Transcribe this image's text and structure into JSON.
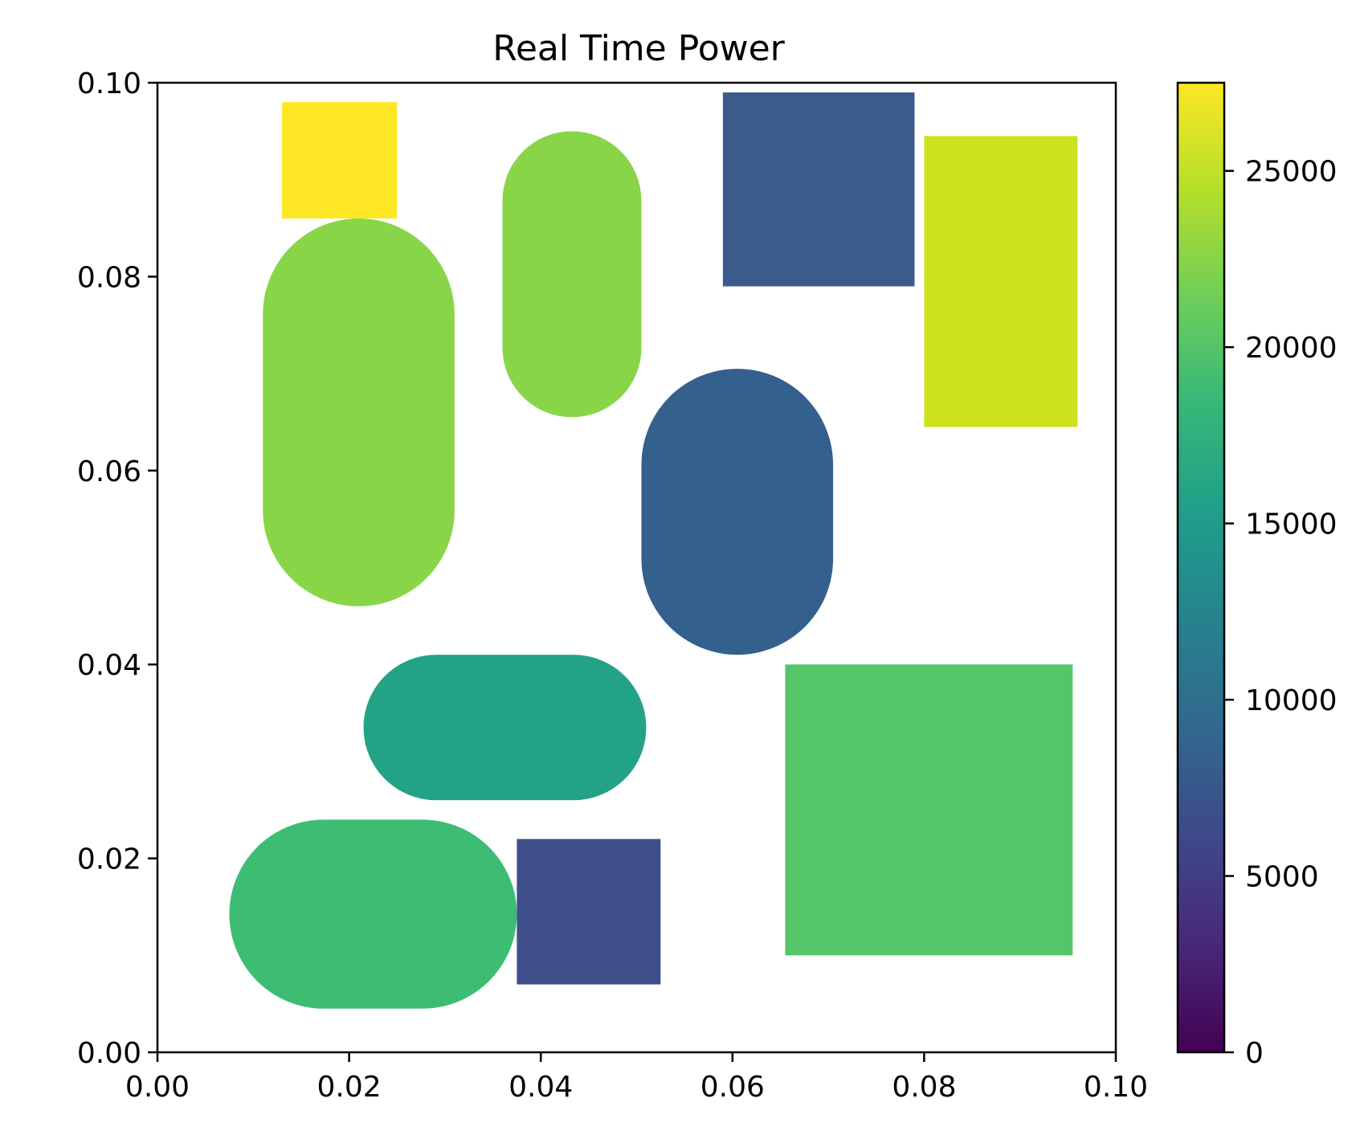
{
  "chart_data": {
    "type": "heatmap",
    "title": "Real Time Power",
    "xlabel": "",
    "ylabel": "",
    "xlim": [
      0.0,
      0.1
    ],
    "ylim": [
      0.0,
      0.1
    ],
    "x_ticks": [
      "0.00",
      "0.02",
      "0.04",
      "0.06",
      "0.08",
      "0.10"
    ],
    "y_ticks": [
      "0.00",
      "0.02",
      "0.04",
      "0.06",
      "0.08",
      "0.10"
    ],
    "grid": false,
    "background": "#ffffff",
    "colorbar": {
      "colormap": "viridis",
      "range": [
        0,
        27500
      ],
      "ticks": [
        "0",
        "5000",
        "10000",
        "15000",
        "20000",
        "25000"
      ],
      "tick_values": [
        0,
        5000,
        10000,
        15000,
        20000,
        25000
      ],
      "stops": [
        "#440154",
        "#482878",
        "#3e4989",
        "#31688e",
        "#26828e",
        "#1f9e89",
        "#35b779",
        "#6ece58",
        "#b5de2b",
        "#fde725"
      ]
    },
    "components": [
      {
        "shape": "rectangle",
        "x": [
          0.013,
          0.025
        ],
        "y": [
          0.086,
          0.098
        ],
        "value": 27400,
        "color": "#fde725"
      },
      {
        "shape": "stadium",
        "orientation": "vertical",
        "x": [
          0.011,
          0.031
        ],
        "y": [
          0.046,
          0.086
        ],
        "value": 22800,
        "color": "#89d548"
      },
      {
        "shape": "stadium",
        "orientation": "vertical",
        "x": [
          0.036,
          0.0505
        ],
        "y": [
          0.0655,
          0.095
        ],
        "value": 22800,
        "color": "#89d548"
      },
      {
        "shape": "rectangle",
        "x": [
          0.059,
          0.079
        ],
        "y": [
          0.079,
          0.099
        ],
        "value": 8600,
        "color": "#3a5b8c"
      },
      {
        "shape": "rectangle",
        "x": [
          0.08,
          0.096
        ],
        "y": [
          0.0645,
          0.0945
        ],
        "value": 25500,
        "color": "#cde11d"
      },
      {
        "shape": "stadium",
        "orientation": "vertical",
        "x": [
          0.0505,
          0.0705
        ],
        "y": [
          0.041,
          0.0705
        ],
        "value": 10200,
        "color": "#34608d"
      },
      {
        "shape": "stadium",
        "orientation": "horizontal",
        "x": [
          0.0215,
          0.051
        ],
        "y": [
          0.026,
          0.041
        ],
        "value": 16800,
        "color": "#22a385"
      },
      {
        "shape": "rectangle",
        "x": [
          0.0655,
          0.0955
        ],
        "y": [
          0.01,
          0.04
        ],
        "value": 21200,
        "color": "#54c568"
      },
      {
        "shape": "stadium",
        "orientation": "horizontal",
        "x": [
          0.0075,
          0.0375
        ],
        "y": [
          0.0045,
          0.024
        ],
        "value": 19800,
        "color": "#3dbc74"
      },
      {
        "shape": "rectangle",
        "x": [
          0.0375,
          0.0525
        ],
        "y": [
          0.007,
          0.022
        ],
        "value": 6200,
        "color": "#3e4f8a"
      }
    ]
  }
}
